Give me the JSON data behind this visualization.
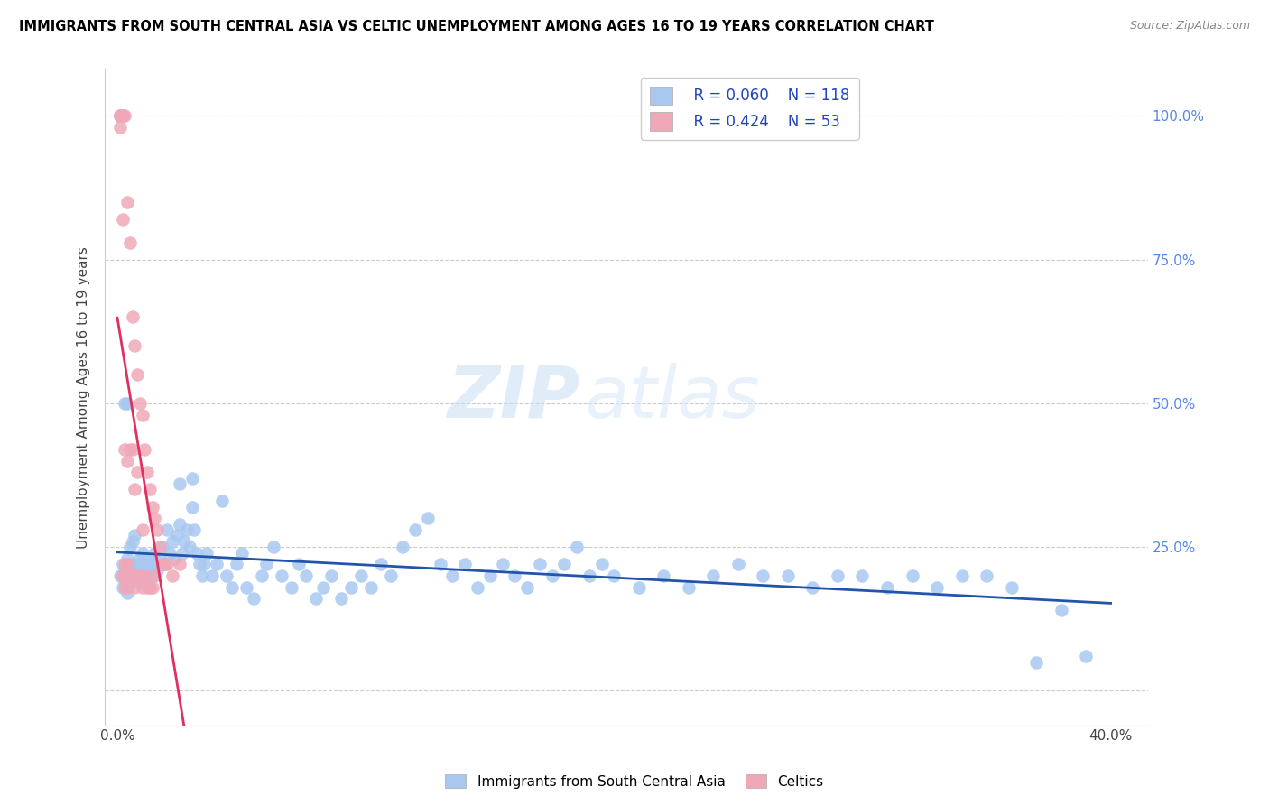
{
  "title": "IMMIGRANTS FROM SOUTH CENTRAL ASIA VS CELTIC UNEMPLOYMENT AMONG AGES 16 TO 19 YEARS CORRELATION CHART",
  "source": "Source: ZipAtlas.com",
  "ylabel": "Unemployment Among Ages 16 to 19 years",
  "xlim": [
    -0.005,
    0.415
  ],
  "ylim": [
    -0.06,
    1.08
  ],
  "blue_color": "#a8c8f0",
  "blue_line_color": "#2255aa",
  "pink_color": "#f0a8b8",
  "pink_line_color": "#e03060",
  "legend_R_blue": "R = 0.060",
  "legend_N_blue": "N = 118",
  "legend_R_pink": "R = 0.424",
  "legend_N_pink": "N = 53",
  "label_blue": "Immigrants from South Central Asia",
  "label_pink": "Celtics",
  "watermark_zip": "ZIP",
  "watermark_atlas": "atlas",
  "blue_scatter_x": [
    0.001,
    0.002,
    0.002,
    0.003,
    0.003,
    0.004,
    0.004,
    0.005,
    0.005,
    0.005,
    0.006,
    0.006,
    0.007,
    0.007,
    0.008,
    0.008,
    0.009,
    0.009,
    0.01,
    0.01,
    0.011,
    0.011,
    0.012,
    0.012,
    0.013,
    0.013,
    0.014,
    0.015,
    0.015,
    0.016,
    0.017,
    0.018,
    0.019,
    0.02,
    0.021,
    0.022,
    0.023,
    0.024,
    0.025,
    0.026,
    0.027,
    0.028,
    0.029,
    0.03,
    0.031,
    0.032,
    0.033,
    0.034,
    0.035,
    0.036,
    0.038,
    0.04,
    0.042,
    0.044,
    0.046,
    0.048,
    0.05,
    0.052,
    0.055,
    0.058,
    0.06,
    0.063,
    0.066,
    0.07,
    0.073,
    0.076,
    0.08,
    0.083,
    0.086,
    0.09,
    0.094,
    0.098,
    0.102,
    0.106,
    0.11,
    0.115,
    0.12,
    0.125,
    0.13,
    0.135,
    0.14,
    0.145,
    0.15,
    0.155,
    0.16,
    0.165,
    0.17,
    0.175,
    0.18,
    0.185,
    0.19,
    0.195,
    0.2,
    0.21,
    0.22,
    0.23,
    0.24,
    0.25,
    0.26,
    0.27,
    0.28,
    0.29,
    0.3,
    0.31,
    0.32,
    0.33,
    0.34,
    0.35,
    0.36,
    0.37,
    0.38,
    0.39,
    0.025,
    0.03,
    0.003,
    0.004,
    0.006,
    0.007
  ],
  "blue_scatter_y": [
    0.2,
    0.22,
    0.18,
    0.21,
    0.19,
    0.23,
    0.17,
    0.25,
    0.2,
    0.22,
    0.19,
    0.21,
    0.2,
    0.22,
    0.21,
    0.19,
    0.23,
    0.2,
    0.22,
    0.24,
    0.21,
    0.2,
    0.22,
    0.19,
    0.23,
    0.21,
    0.2,
    0.22,
    0.24,
    0.21,
    0.23,
    0.25,
    0.22,
    0.28,
    0.24,
    0.26,
    0.23,
    0.27,
    0.29,
    0.24,
    0.26,
    0.28,
    0.25,
    0.32,
    0.28,
    0.24,
    0.22,
    0.2,
    0.22,
    0.24,
    0.2,
    0.22,
    0.33,
    0.2,
    0.18,
    0.22,
    0.24,
    0.18,
    0.16,
    0.2,
    0.22,
    0.25,
    0.2,
    0.18,
    0.22,
    0.2,
    0.16,
    0.18,
    0.2,
    0.16,
    0.18,
    0.2,
    0.18,
    0.22,
    0.2,
    0.25,
    0.28,
    0.3,
    0.22,
    0.2,
    0.22,
    0.18,
    0.2,
    0.22,
    0.2,
    0.18,
    0.22,
    0.2,
    0.22,
    0.25,
    0.2,
    0.22,
    0.2,
    0.18,
    0.2,
    0.18,
    0.2,
    0.22,
    0.2,
    0.2,
    0.18,
    0.2,
    0.2,
    0.18,
    0.2,
    0.18,
    0.2,
    0.2,
    0.18,
    0.05,
    0.14,
    0.06,
    0.36,
    0.37,
    0.5,
    0.5,
    0.26,
    0.27
  ],
  "pink_scatter_x": [
    0.001,
    0.001,
    0.001,
    0.001,
    0.001,
    0.002,
    0.002,
    0.002,
    0.002,
    0.002,
    0.003,
    0.003,
    0.003,
    0.003,
    0.003,
    0.004,
    0.004,
    0.004,
    0.004,
    0.005,
    0.005,
    0.005,
    0.006,
    0.006,
    0.006,
    0.007,
    0.007,
    0.007,
    0.008,
    0.008,
    0.008,
    0.009,
    0.009,
    0.01,
    0.01,
    0.01,
    0.011,
    0.011,
    0.012,
    0.012,
    0.013,
    0.013,
    0.014,
    0.014,
    0.015,
    0.015,
    0.016,
    0.017,
    0.018,
    0.019,
    0.02,
    0.022,
    0.025
  ],
  "pink_scatter_y": [
    1.0,
    1.0,
    1.0,
    1.0,
    0.98,
    1.0,
    1.0,
    0.82,
    0.2,
    0.2,
    1.0,
    0.42,
    0.22,
    0.2,
    0.18,
    0.85,
    0.4,
    0.22,
    0.18,
    0.78,
    0.42,
    0.2,
    0.65,
    0.42,
    0.2,
    0.6,
    0.35,
    0.18,
    0.55,
    0.38,
    0.2,
    0.5,
    0.2,
    0.48,
    0.28,
    0.18,
    0.42,
    0.2,
    0.38,
    0.18,
    0.35,
    0.18,
    0.32,
    0.18,
    0.3,
    0.2,
    0.28,
    0.25,
    0.22,
    0.22,
    0.22,
    0.2,
    0.22
  ]
}
